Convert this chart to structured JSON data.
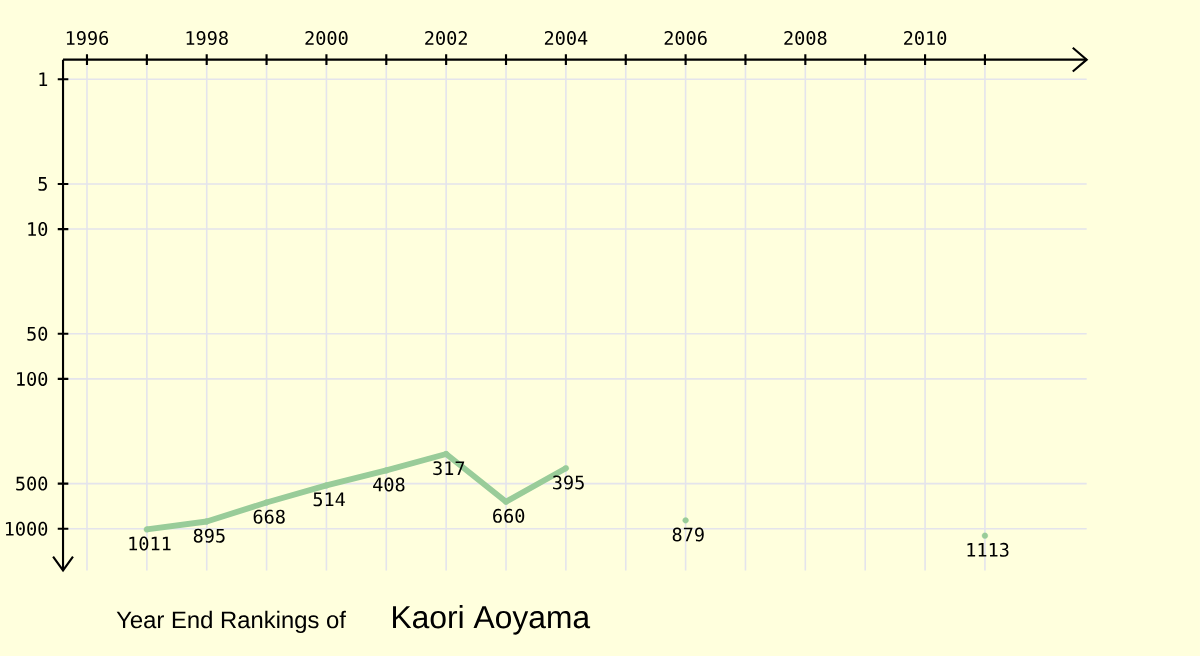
{
  "chart_data": {
    "type": "line",
    "title": "Year End Rankings of",
    "subtitle": "Kaori Aoyama",
    "x": [
      1997,
      1998,
      1999,
      2000,
      2001,
      2002,
      2003,
      2004,
      2005,
      2006,
      2007,
      2008,
      2009,
      2010,
      2011
    ],
    "series": [
      {
        "color": "#99cc99",
        "values": [
          1011,
          895,
          668,
          514,
          408,
          317,
          660,
          395,
          null,
          879,
          null,
          null,
          null,
          null,
          1113
        ]
      }
    ],
    "xlim": [
      1995.6,
      2012.7
    ],
    "xticks": [
      1996,
      {
        "value": 1997,
        "label": null
      },
      1998,
      {
        "value": 1999,
        "label": null
      },
      2000,
      {
        "value": 2001,
        "label": null
      },
      2002,
      {
        "value": 2003,
        "label": null
      },
      2004,
      {
        "value": 2005,
        "label": null
      },
      2006,
      {
        "value": 2007,
        "label": null
      },
      2008,
      {
        "value": 2009,
        "label": null
      },
      2010,
      {
        "value": 2011,
        "label": null
      }
    ],
    "ylim": [
      1900,
      0.74
    ],
    "yticks": [
      1,
      5,
      10,
      50,
      100,
      500,
      1000
    ],
    "log": "y",
    "grid": true,
    "marker": "circle",
    "line_style": "solid",
    "data_labels": true
  }
}
